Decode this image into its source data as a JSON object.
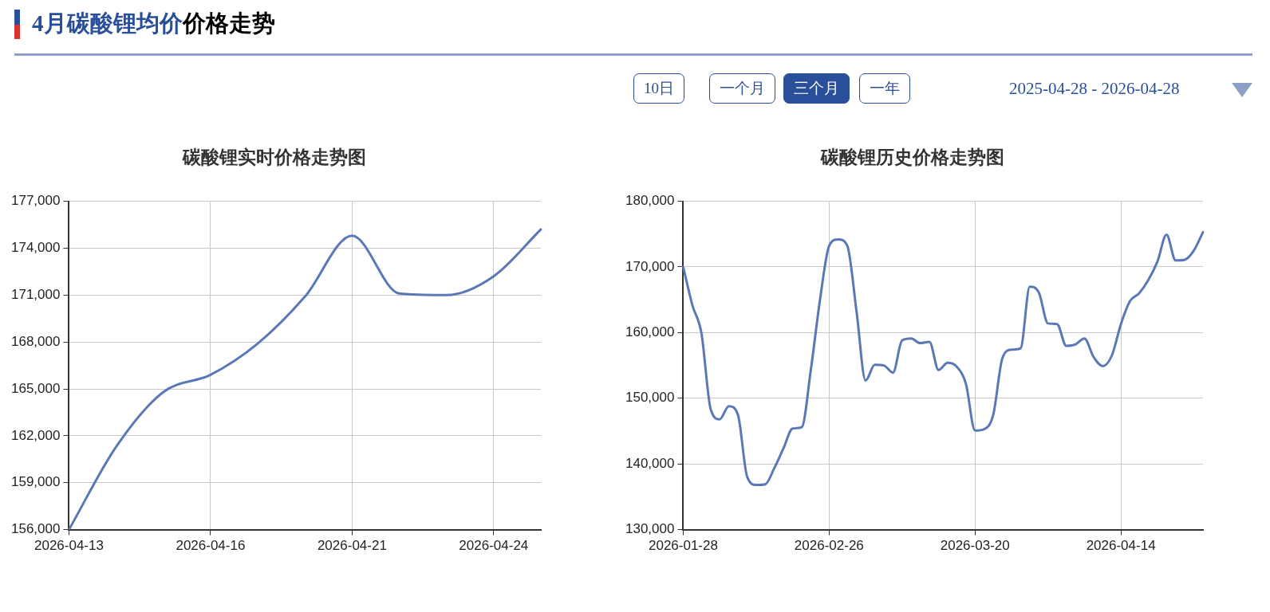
{
  "chart_data": [
    {
      "type": "other",
      "title": "4月碳酸锂均价",
      "subtitle": "价格走势",
      "annotations": [
        "10日",
        "一个月",
        "三个月",
        "一年",
        "2025-04-28 - 2026-04-28"
      ]
    },
    {
      "type": "line",
      "title": "碳酸锂实时价格走势图",
      "categories": [
        "2026-04-13",
        null,
        null,
        "2026-04-16",
        null,
        null,
        "2026-04-21",
        null,
        null,
        "2026-04-24",
        null
      ],
      "series": [
        {
          "color": "#5b78b6",
          "values": [
            156000,
            161300,
            164800,
            165900,
            167900,
            170900,
            174800,
            171100,
            171000,
            172200,
            175200
          ]
        }
      ],
      "ylim": [
        156000,
        177000
      ],
      "yticks": [
        {
          "value": 156000,
          "label": "156,000"
        },
        {
          "value": 159000,
          "label": "159,000"
        },
        {
          "value": 162000,
          "label": "162,000"
        },
        {
          "value": 165000,
          "label": "165,000"
        },
        {
          "value": 168000,
          "label": "168,000"
        },
        {
          "value": 171000,
          "label": "171,000"
        },
        {
          "value": 174000,
          "label": "174,000"
        },
        {
          "value": 177000,
          "label": "177,000"
        }
      ],
      "grid": true,
      "legend": false,
      "marker": "none",
      "line_style": "solid"
    },
    {
      "type": "line",
      "title": "碳酸锂历史价格走势图",
      "categories": [
        "2026-01-28",
        null,
        null,
        null,
        null,
        null,
        null,
        null,
        null,
        null,
        null,
        null,
        null,
        null,
        null,
        null,
        "2026-02-26",
        null,
        null,
        null,
        null,
        null,
        null,
        null,
        null,
        null,
        null,
        null,
        null,
        null,
        null,
        null,
        "2026-03-20",
        null,
        null,
        null,
        null,
        null,
        null,
        null,
        null,
        null,
        null,
        null,
        null,
        null,
        null,
        null,
        "2026-04-14",
        null,
        null,
        null,
        null,
        null,
        null,
        null,
        null,
        null
      ],
      "series": [
        {
          "color": "#5b78b6",
          "values": [
            170000,
            164200,
            159900,
            148400,
            146800,
            148800,
            147500,
            138100,
            136800,
            136900,
            139400,
            142400,
            145400,
            145600,
            154400,
            165000,
            173200,
            174200,
            173200,
            163300,
            152700,
            155100,
            155000,
            153900,
            158800,
            159100,
            158400,
            158600,
            154300,
            155400,
            154800,
            152200,
            145100,
            145300,
            147500,
            156100,
            157400,
            157600,
            167000,
            166100,
            161400,
            161300,
            158000,
            158200,
            159100,
            156300,
            154900,
            156500,
            161300,
            164800,
            166000,
            168000,
            170800,
            174900,
            171000,
            171100,
            172500,
            175300
          ]
        }
      ],
      "ylim": [
        130000,
        180000
      ],
      "yticks": [
        {
          "value": 130000,
          "label": "130,000"
        },
        {
          "value": 140000,
          "label": "140,000"
        },
        {
          "value": 150000,
          "label": "150,000"
        },
        {
          "value": 160000,
          "label": "160,000"
        },
        {
          "value": 170000,
          "label": "170,000"
        },
        {
          "value": 180000,
          "label": "180,000"
        }
      ],
      "grid": true,
      "legend": false,
      "marker": "none",
      "line_style": "solid"
    }
  ]
}
